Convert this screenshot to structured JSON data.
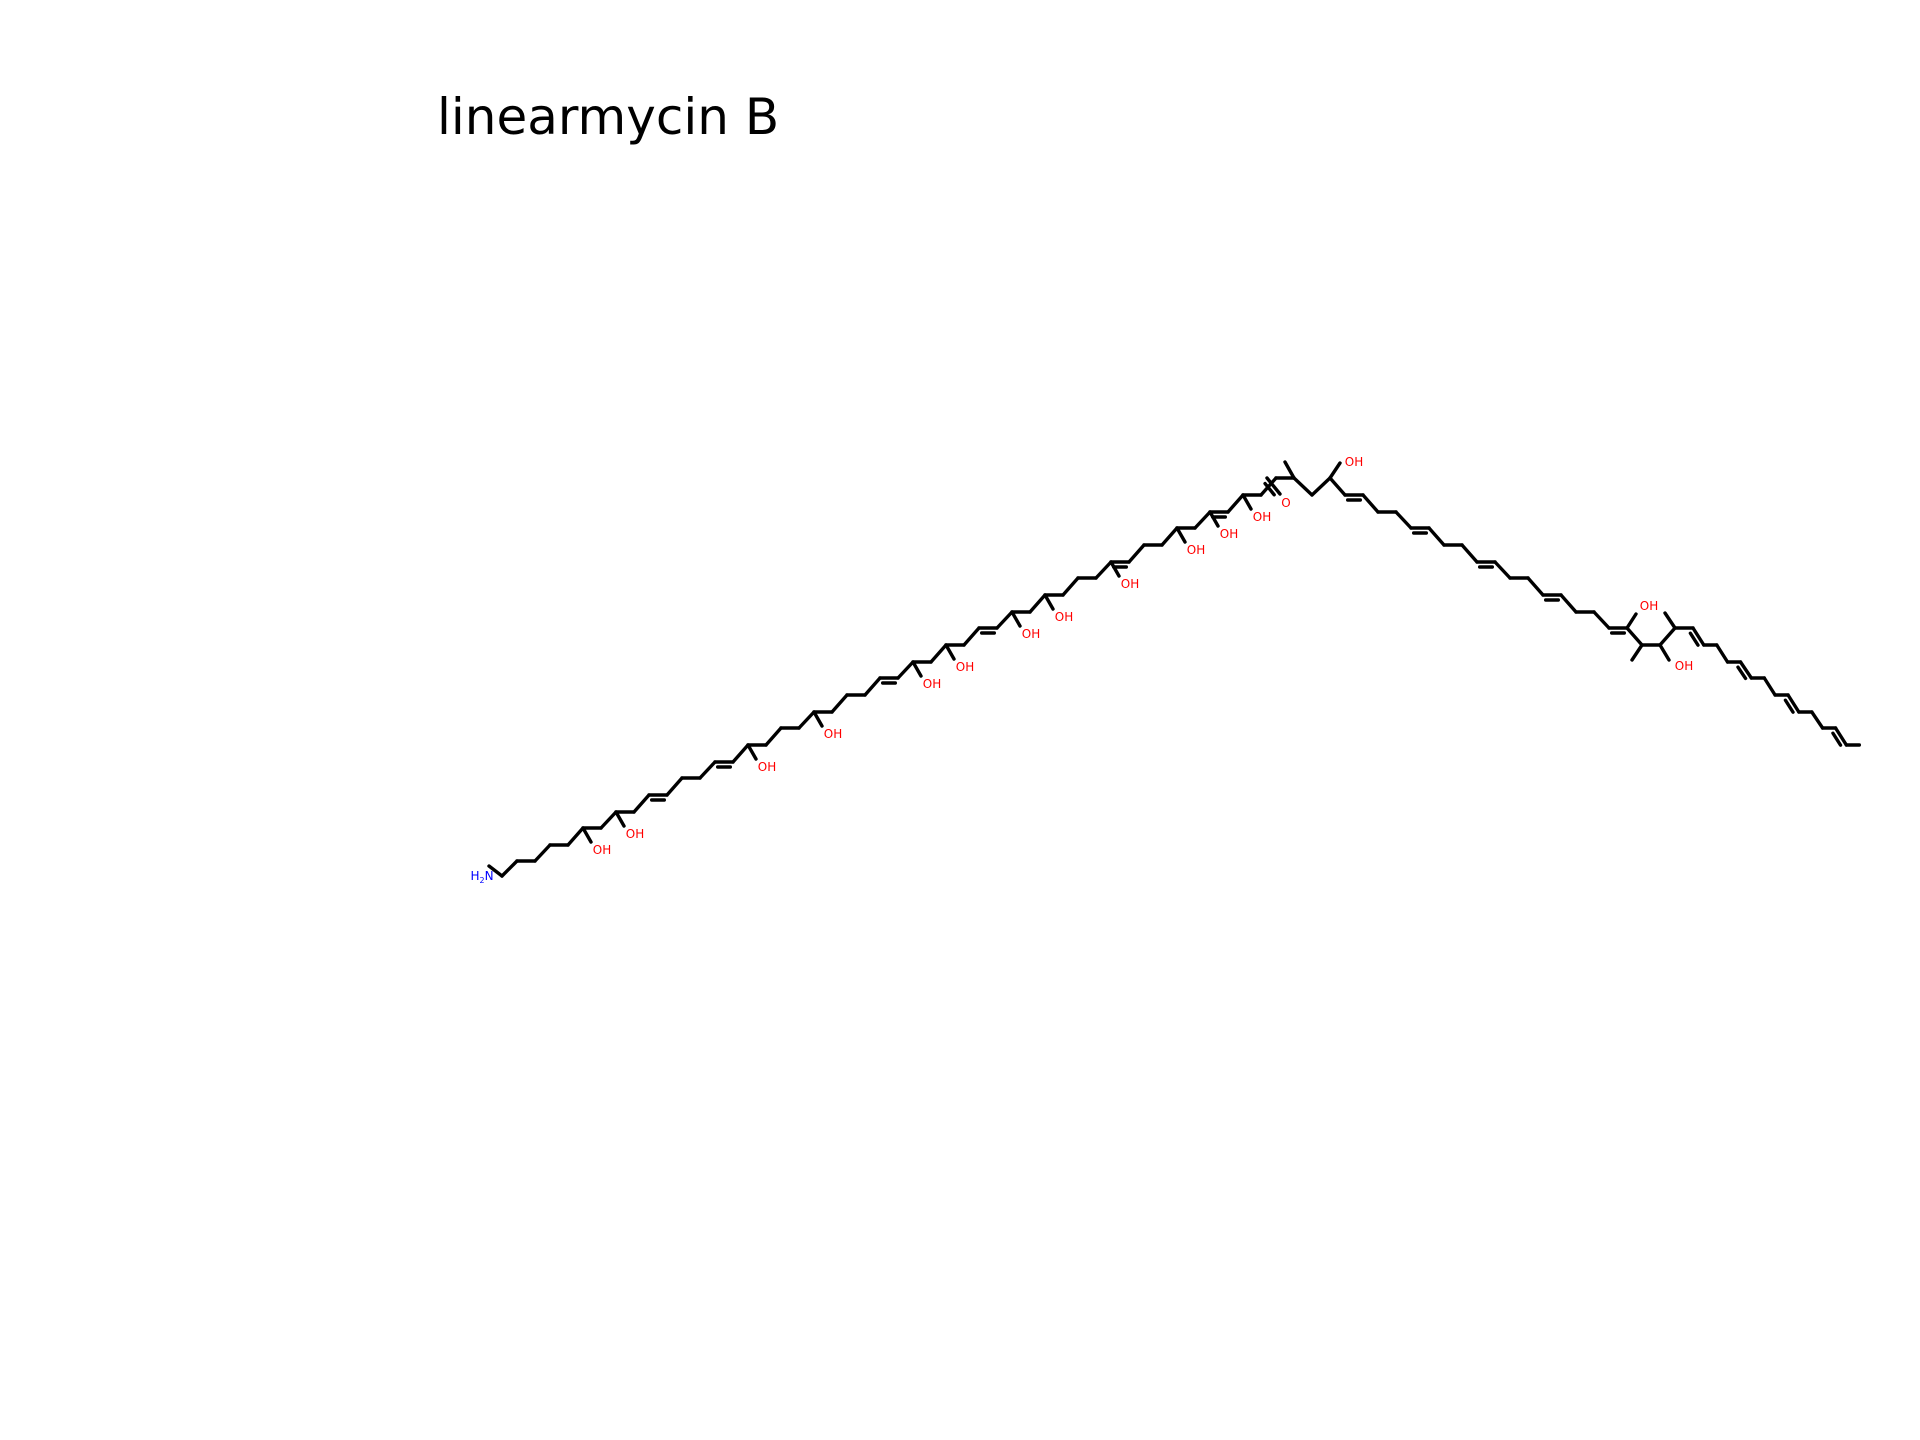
{
  "figure": {
    "title": "linearmycin B"
  },
  "molecule": {
    "name": "linearmycin B",
    "colors": {
      "bond": "#000000",
      "oxygen": "#ff0000",
      "nitrogen": "#0000ff"
    },
    "labels": {
      "amine": "H2N",
      "hydroxyl": "OH",
      "carbonyl_oxygen": "O"
    }
  }
}
